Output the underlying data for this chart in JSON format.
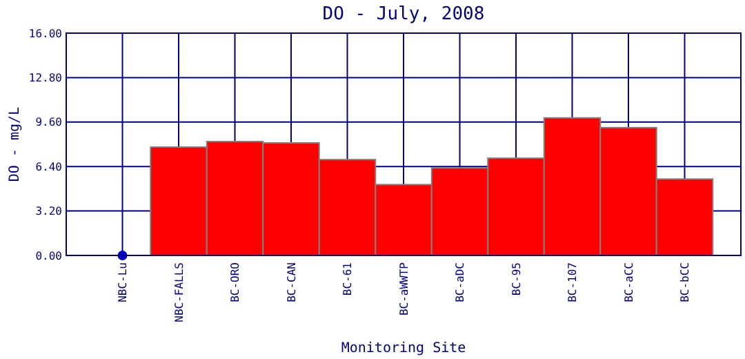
{
  "chart_data": {
    "type": "bar",
    "title": "DO - July, 2008",
    "xlabel": "Monitoring Site",
    "ylabel": "DO - mg/L",
    "categories": [
      "NBC-Lu",
      "NBC-FALLS",
      "BC-ORO",
      "BC-CAN",
      "BC-61",
      "BC-aWWTP",
      "BC-aDC",
      "BC-95",
      "BC-107",
      "BC-aCC",
      "BC-bCC"
    ],
    "series": [
      {
        "color": "#ff0000",
        "values": [
          null,
          7.8,
          8.2,
          8.1,
          6.9,
          5.1,
          6.3,
          7.0,
          9.9,
          9.2,
          5.5
        ]
      },
      {
        "type": "scatter",
        "color": "#0000cc",
        "x": [
          "NBC-Lu"
        ],
        "values": [
          0
        ]
      }
    ],
    "ylim": [
      0,
      16
    ],
    "yticks": [
      {
        "value": 0,
        "label": "0.00"
      },
      {
        "value": 3.2,
        "label": "3.20"
      },
      {
        "value": 6.4,
        "label": "6.40"
      },
      {
        "value": 9.6,
        "label": "9.60"
      },
      {
        "value": 12.8,
        "label": "12.80"
      },
      {
        "value": 16,
        "label": "16.00"
      }
    ],
    "grid": true,
    "marker": "circle"
  }
}
